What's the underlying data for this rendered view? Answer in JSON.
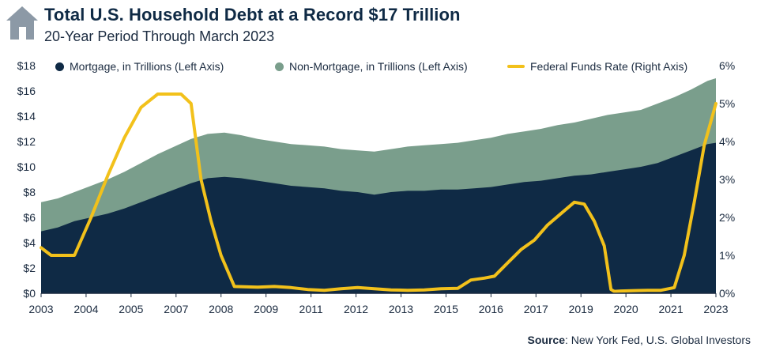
{
  "header": {
    "title": "Total U.S. Household Debt at a Record $17 Trillion",
    "subtitle": "20-Year Period Through March 2023",
    "icon": "house-icon"
  },
  "source": {
    "label": "Source",
    "text": ": New York Fed, U.S. Global Investors"
  },
  "colors": {
    "mortgage": "#0f2a45",
    "non_mortgage": "#7a9e8c",
    "fed_funds": "#f2c11b",
    "title": "#0f2a45"
  },
  "chart_data": {
    "type": "area",
    "legend_placement": "top",
    "grid": false,
    "x_tick_labels": [
      "2003",
      "2004",
      "2005",
      "2007",
      "2008",
      "2009",
      "2011",
      "2012",
      "2013",
      "2015",
      "2016",
      "2017",
      "2019",
      "2020",
      "2021",
      "2023"
    ],
    "x_range": [
      2003.0,
      2023.25
    ],
    "y_left": {
      "range": [
        0,
        18
      ],
      "ticks": [
        "$0",
        "$2",
        "$4",
        "$6",
        "$8",
        "$10",
        "$12",
        "$14",
        "$16",
        "$18"
      ]
    },
    "y_right": {
      "range": [
        0,
        6
      ],
      "ticks": [
        "0%",
        "1%",
        "2%",
        "3%",
        "4%",
        "5%",
        "6%"
      ]
    },
    "series": [
      {
        "name": "Mortgage, in Trillions (Left Axis)",
        "axis": "left",
        "kind": "stacked-area-base",
        "x": [
          2003.0,
          2003.5,
          2004.0,
          2004.5,
          2005.0,
          2005.5,
          2006.0,
          2006.5,
          2007.0,
          2007.5,
          2008.0,
          2008.5,
          2009.0,
          2009.5,
          2010.0,
          2010.5,
          2011.0,
          2011.5,
          2012.0,
          2012.5,
          2013.0,
          2013.5,
          2014.0,
          2014.5,
          2015.0,
          2015.5,
          2016.0,
          2016.5,
          2017.0,
          2017.5,
          2018.0,
          2018.5,
          2019.0,
          2019.5,
          2020.0,
          2020.5,
          2021.0,
          2021.5,
          2022.0,
          2022.5,
          2023.0,
          2023.25
        ],
        "values": [
          4.9,
          5.2,
          5.7,
          6.0,
          6.3,
          6.7,
          7.2,
          7.7,
          8.2,
          8.7,
          9.1,
          9.2,
          9.1,
          8.9,
          8.7,
          8.5,
          8.4,
          8.3,
          8.1,
          8.0,
          7.8,
          8.0,
          8.1,
          8.1,
          8.2,
          8.2,
          8.3,
          8.4,
          8.6,
          8.8,
          8.9,
          9.1,
          9.3,
          9.4,
          9.6,
          9.8,
          10.0,
          10.3,
          10.8,
          11.3,
          11.8,
          11.9
        ]
      },
      {
        "name": "Non-Mortgage, in Trillions (Left Axis)",
        "axis": "left",
        "kind": "stacked-area-top",
        "x": [
          2003.0,
          2003.5,
          2004.0,
          2004.5,
          2005.0,
          2005.5,
          2006.0,
          2006.5,
          2007.0,
          2007.5,
          2008.0,
          2008.5,
          2009.0,
          2009.5,
          2010.0,
          2010.5,
          2011.0,
          2011.5,
          2012.0,
          2012.5,
          2013.0,
          2013.5,
          2014.0,
          2014.5,
          2015.0,
          2015.5,
          2016.0,
          2016.5,
          2017.0,
          2017.5,
          2018.0,
          2018.5,
          2019.0,
          2019.5,
          2020.0,
          2020.5,
          2021.0,
          2021.5,
          2022.0,
          2022.5,
          2023.0,
          2023.25
        ],
        "values": [
          7.2,
          7.5,
          8.0,
          8.5,
          9.0,
          9.6,
          10.3,
          11.0,
          11.6,
          12.2,
          12.6,
          12.7,
          12.5,
          12.2,
          12.0,
          11.8,
          11.7,
          11.6,
          11.4,
          11.3,
          11.2,
          11.4,
          11.6,
          11.7,
          11.8,
          11.9,
          12.1,
          12.3,
          12.6,
          12.8,
          13.0,
          13.3,
          13.5,
          13.8,
          14.1,
          14.3,
          14.5,
          15.0,
          15.5,
          16.1,
          16.8,
          17.0
        ]
      },
      {
        "name": "Federal Funds Rate (Right Axis)",
        "axis": "right",
        "kind": "line",
        "x": [
          2003.0,
          2003.3,
          2003.6,
          2004.0,
          2004.5,
          2005.0,
          2005.5,
          2006.0,
          2006.5,
          2006.9,
          2007.2,
          2007.5,
          2007.8,
          2008.1,
          2008.4,
          2008.8,
          2009.5,
          2010.0,
          2010.5,
          2011.0,
          2011.5,
          2012.0,
          2012.5,
          2013.0,
          2013.5,
          2014.0,
          2014.5,
          2015.0,
          2015.5,
          2015.9,
          2016.3,
          2016.6,
          2017.0,
          2017.4,
          2017.8,
          2018.2,
          2018.6,
          2019.0,
          2019.3,
          2019.6,
          2019.9,
          2020.1,
          2020.2,
          2020.4,
          2020.8,
          2021.2,
          2021.6,
          2022.0,
          2022.3,
          2022.6,
          2022.9,
          2023.25
        ],
        "values": [
          1.2,
          1.0,
          1.0,
          1.0,
          2.0,
          3.1,
          4.1,
          4.9,
          5.25,
          5.25,
          5.25,
          5.0,
          3.0,
          1.9,
          1.0,
          0.18,
          0.16,
          0.18,
          0.15,
          0.1,
          0.08,
          0.12,
          0.15,
          0.12,
          0.09,
          0.08,
          0.09,
          0.12,
          0.13,
          0.35,
          0.4,
          0.45,
          0.8,
          1.15,
          1.4,
          1.8,
          2.1,
          2.4,
          2.35,
          1.9,
          1.25,
          0.1,
          0.05,
          0.06,
          0.07,
          0.08,
          0.08,
          0.15,
          1.0,
          2.4,
          3.9,
          5.0
        ]
      }
    ]
  }
}
